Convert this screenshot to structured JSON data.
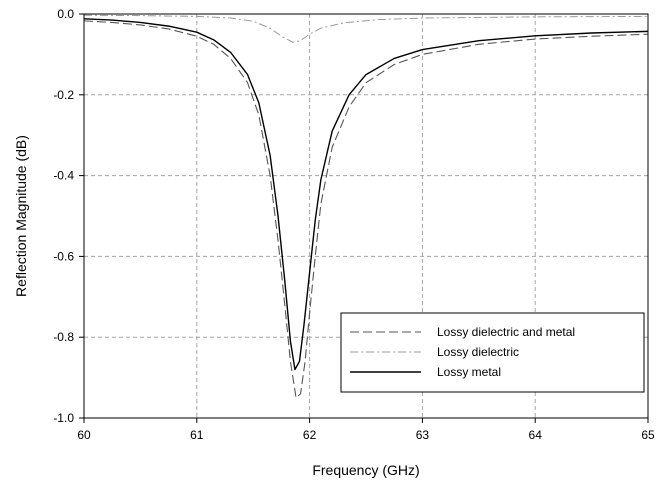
{
  "chart_data": {
    "type": "line",
    "title": "",
    "xlabel": "Frequency (GHz)",
    "ylabel": "Reflection Magnitude (dB)",
    "xlim": [
      60,
      65
    ],
    "ylim": [
      -1.0,
      0.0
    ],
    "x_ticks": [
      60,
      61,
      62,
      63,
      64,
      65
    ],
    "x_tick_labels": [
      "60",
      "61",
      "62",
      "63",
      "64",
      "65"
    ],
    "y_ticks": [
      0.0,
      -0.2,
      -0.4,
      -0.6,
      -0.8,
      -1.0
    ],
    "y_tick_labels": [
      "0.0",
      "-0.2",
      "-0.4",
      "-0.6",
      "-0.8",
      "-1.0"
    ],
    "grid": true,
    "legend_position": "bottom-right",
    "series": [
      {
        "name": "Lossy dielectric and metal",
        "style": "dashed",
        "color": "#555555",
        "points": [
          [
            60.0,
            -0.017
          ],
          [
            60.25,
            -0.021
          ],
          [
            60.5,
            -0.027
          ],
          [
            60.75,
            -0.037
          ],
          [
            61.0,
            -0.055
          ],
          [
            61.15,
            -0.075
          ],
          [
            61.3,
            -0.11
          ],
          [
            61.45,
            -0.17
          ],
          [
            61.55,
            -0.25
          ],
          [
            61.65,
            -0.4
          ],
          [
            61.72,
            -0.56
          ],
          [
            61.78,
            -0.72
          ],
          [
            61.83,
            -0.86
          ],
          [
            61.88,
            -0.95
          ],
          [
            61.92,
            -0.94
          ],
          [
            61.96,
            -0.86
          ],
          [
            62.0,
            -0.74
          ],
          [
            62.05,
            -0.6
          ],
          [
            62.1,
            -0.47
          ],
          [
            62.2,
            -0.33
          ],
          [
            62.35,
            -0.23
          ],
          [
            62.5,
            -0.17
          ],
          [
            62.75,
            -0.125
          ],
          [
            63.0,
            -0.1
          ],
          [
            63.5,
            -0.075
          ],
          [
            64.0,
            -0.062
          ],
          [
            64.5,
            -0.055
          ],
          [
            65.0,
            -0.05
          ]
        ]
      },
      {
        "name": "Lossy dielectric",
        "style": "dash-dot",
        "color": "#9a9a9a",
        "points": [
          [
            60.0,
            -0.003
          ],
          [
            60.5,
            -0.004
          ],
          [
            61.0,
            -0.006
          ],
          [
            61.3,
            -0.01
          ],
          [
            61.5,
            -0.018
          ],
          [
            61.65,
            -0.035
          ],
          [
            61.75,
            -0.055
          ],
          [
            61.85,
            -0.07
          ],
          [
            61.92,
            -0.066
          ],
          [
            62.0,
            -0.05
          ],
          [
            62.1,
            -0.035
          ],
          [
            62.3,
            -0.022
          ],
          [
            62.6,
            -0.014
          ],
          [
            63.0,
            -0.01
          ],
          [
            64.0,
            -0.007
          ],
          [
            65.0,
            -0.006
          ]
        ]
      },
      {
        "name": "Lossy metal",
        "style": "solid",
        "color": "#000000",
        "points": [
          [
            60.0,
            -0.012
          ],
          [
            60.25,
            -0.015
          ],
          [
            60.5,
            -0.021
          ],
          [
            60.75,
            -0.03
          ],
          [
            61.0,
            -0.045
          ],
          [
            61.15,
            -0.064
          ],
          [
            61.3,
            -0.095
          ],
          [
            61.45,
            -0.15
          ],
          [
            61.55,
            -0.22
          ],
          [
            61.65,
            -0.35
          ],
          [
            61.72,
            -0.5
          ],
          [
            61.78,
            -0.66
          ],
          [
            61.83,
            -0.81
          ],
          [
            61.87,
            -0.88
          ],
          [
            61.91,
            -0.86
          ],
          [
            61.95,
            -0.77
          ],
          [
            62.0,
            -0.64
          ],
          [
            62.05,
            -0.51
          ],
          [
            62.1,
            -0.41
          ],
          [
            62.2,
            -0.29
          ],
          [
            62.35,
            -0.2
          ],
          [
            62.5,
            -0.15
          ],
          [
            62.75,
            -0.11
          ],
          [
            63.0,
            -0.088
          ],
          [
            63.5,
            -0.066
          ],
          [
            64.0,
            -0.054
          ],
          [
            64.5,
            -0.047
          ],
          [
            65.0,
            -0.043
          ]
        ]
      }
    ]
  }
}
